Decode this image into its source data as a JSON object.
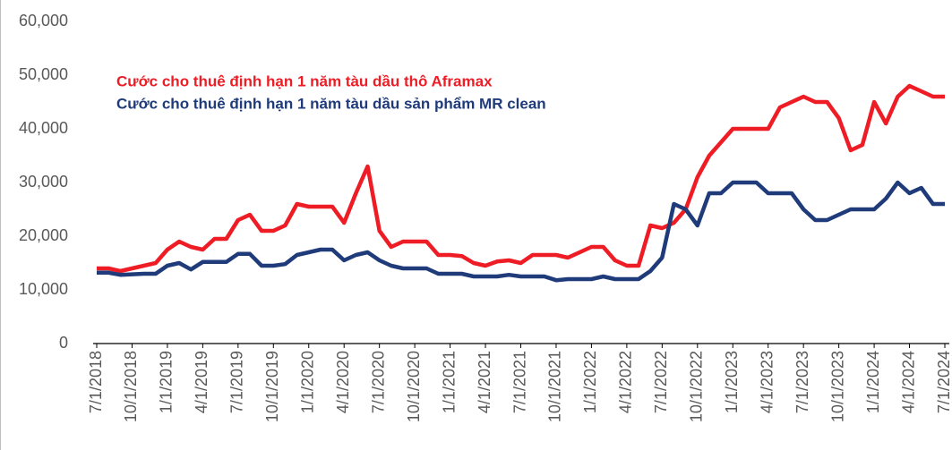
{
  "chart_data": {
    "type": "line",
    "categories": [
      "7/1/2018",
      null,
      null,
      "10/1/2018",
      null,
      null,
      "1/1/2019",
      null,
      null,
      "4/1/2019",
      null,
      null,
      "7/1/2019",
      null,
      null,
      "10/1/2019",
      null,
      null,
      "1/1/2020",
      null,
      null,
      "4/1/2020",
      null,
      null,
      "7/1/2020",
      null,
      null,
      "10/1/2020",
      null,
      null,
      "1/1/2021",
      null,
      null,
      "4/1/2021",
      null,
      null,
      "7/1/2021",
      null,
      null,
      "10/1/2021",
      null,
      null,
      "1/1/2022",
      null,
      null,
      "4/1/2022",
      null,
      null,
      "7/1/2022",
      null,
      null,
      "10/1/2022",
      null,
      null,
      "1/1/2023",
      null,
      null,
      "4/1/2023",
      null,
      null,
      "7/1/2023",
      null,
      null,
      "10/1/2023",
      null,
      null,
      "1/1/2024",
      null,
      null,
      "4/1/2024",
      null,
      null,
      "7/1/2024"
    ],
    "series": [
      {
        "name": "Cước cho thuê định hạn 1 năm tàu dầu thô Aframax",
        "color": "#ee1c25",
        "values": [
          14000,
          14000,
          13500,
          14000,
          14500,
          15000,
          17500,
          19000,
          18000,
          17500,
          19500,
          19500,
          23000,
          24000,
          21000,
          21000,
          22000,
          26000,
          25500,
          25500,
          25500,
          22500,
          28000,
          33000,
          21000,
          18000,
          19000,
          19000,
          19000,
          16500,
          16500,
          16300,
          15000,
          14500,
          15300,
          15500,
          15000,
          16500,
          16500,
          16500,
          16000,
          17000,
          18000,
          18000,
          15500,
          14500,
          14500,
          22000,
          21500,
          22500,
          25000,
          31000,
          35000,
          37500,
          40000,
          40000,
          40000,
          40000,
          44000,
          45000,
          46000,
          45000,
          45000,
          42000,
          36000,
          37000,
          45000,
          41000,
          46000,
          48000,
          47000,
          46000,
          46000
        ]
      },
      {
        "name": "Cước cho thuê định hạn 1 năm tàu dầu sản phẩm MR clean",
        "color": "#1f3b7a",
        "values": [
          13200,
          13200,
          12800,
          12900,
          13000,
          13000,
          14500,
          15000,
          13800,
          15200,
          15200,
          15200,
          16700,
          16700,
          14500,
          14500,
          14800,
          16500,
          17000,
          17500,
          17500,
          15500,
          16500,
          17000,
          15500,
          14500,
          14000,
          14000,
          14000,
          13000,
          13000,
          13000,
          12500,
          12500,
          12500,
          12800,
          12500,
          12500,
          12500,
          11800,
          12000,
          12000,
          12000,
          12500,
          12000,
          12000,
          12000,
          13500,
          16000,
          26000,
          25000,
          22000,
          28000,
          28000,
          30000,
          30000,
          30000,
          28000,
          28000,
          28000,
          25000,
          23000,
          23000,
          24000,
          25000,
          25000,
          25000,
          27000,
          30000,
          28000,
          29000,
          26000,
          26000
        ]
      }
    ],
    "ylim": [
      0,
      60000
    ],
    "yticks": [
      {
        "value": 0,
        "label": "0"
      },
      {
        "value": 10000,
        "label": "10,000"
      },
      {
        "value": 20000,
        "label": "20,000"
      },
      {
        "value": 30000,
        "label": "30,000"
      },
      {
        "value": 40000,
        "label": "40,000"
      },
      {
        "value": 50000,
        "label": "50,000"
      },
      {
        "value": 60000,
        "label": "60,000"
      }
    ],
    "grid": false
  }
}
